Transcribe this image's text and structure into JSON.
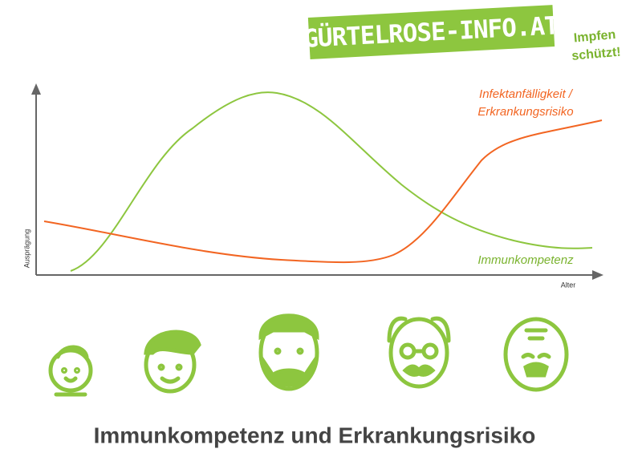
{
  "header": {
    "brand": "GÜRTELROSE-INFO.AT",
    "slogan": [
      "Impfen",
      "schützt!"
    ]
  },
  "diagram": {
    "y_axis_label": "Ausprägung",
    "x_axis_label": "Alter",
    "risk_label": [
      "Infektanfälligkeit /",
      "Erkrankungsrisiko"
    ],
    "immunity_label": "Immunkompetenz"
  },
  "title": "Immunkompetenz und Erkrankungsrisiko"
}
